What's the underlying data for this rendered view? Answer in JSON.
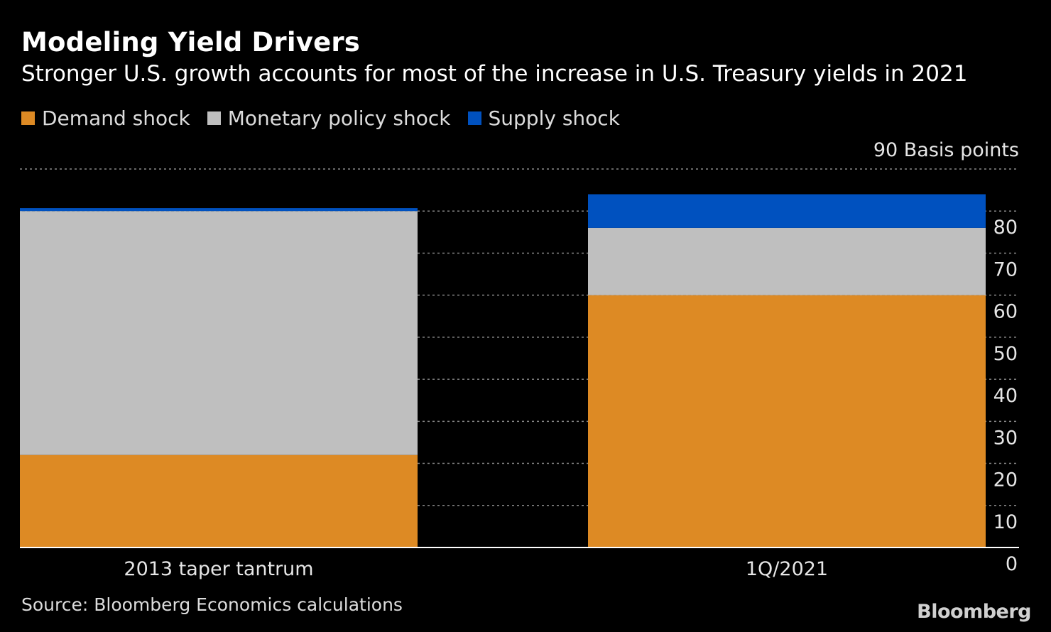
{
  "title": "Modeling Yield Drivers",
  "subtitle": "Stronger U.S. growth accounts for most of the increase in U.S. Treasury yields in 2021",
  "source": "Source: Bloomberg Economics calculations",
  "logo": "Bloomberg",
  "colors": {
    "background": "#000000",
    "demand": "#dd8a24",
    "monetary": "#bfbfbf",
    "supply": "#0051bf",
    "grid": "#8a8a8a"
  },
  "chart_data": {
    "type": "bar",
    "stacked": true,
    "title": "Modeling Yield Drivers",
    "subtitle": "Stronger U.S. growth accounts for most of the increase in U.S. Treasury yields in 2021",
    "categories": [
      "2013 taper tantrum",
      "1Q/2021"
    ],
    "series": [
      {
        "name": "Demand shock",
        "color": "#dd8a24",
        "values": [
          22,
          60
        ]
      },
      {
        "name": "Monetary policy shock",
        "color": "#bfbfbf",
        "values": [
          58,
          16
        ]
      },
      {
        "name": "Supply shock",
        "color": "#0051bf",
        "values": [
          0.7,
          8
        ]
      }
    ],
    "ylabel": "Basis points",
    "y_ticks": [
      0,
      10,
      20,
      30,
      40,
      50,
      60,
      70,
      80,
      90
    ],
    "y_tick_labels": [
      "0",
      "10",
      "20",
      "30",
      "40",
      "50",
      "60",
      "70",
      "80",
      "90 Basis points"
    ],
    "ylim": [
      0,
      90
    ],
    "grid": true,
    "grid_style": "dotted",
    "y_axis_side": "right",
    "legend_position": "top-left"
  }
}
